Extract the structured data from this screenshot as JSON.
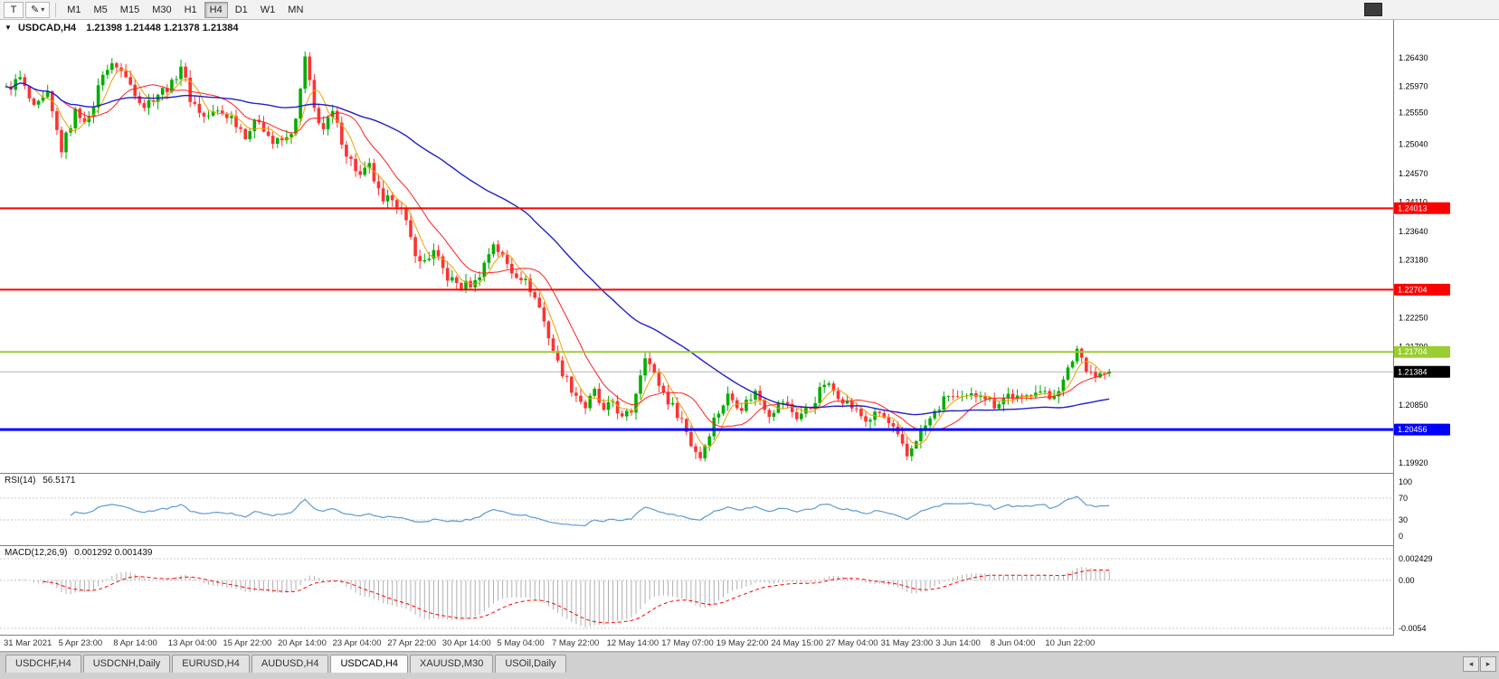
{
  "icons": {
    "cursor_tool": "T",
    "pencil": "✎",
    "caret_down": "▾",
    "chart_dropdown": "▼",
    "tab_scroll_left": "◂",
    "tab_scroll_right": "▸"
  },
  "toolbar": {
    "timeframes": [
      "M1",
      "M5",
      "M15",
      "M30",
      "H1",
      "H4",
      "D1",
      "W1",
      "MN"
    ],
    "active_timeframe": "H4"
  },
  "chart": {
    "symbol_period": "USDCAD,H4",
    "ohlc_text": "1.21398 1.21448 1.21378 1.21384",
    "open": "1.21398",
    "high": "1.21448",
    "low": "1.21378",
    "close": "1.21384"
  },
  "indicators": {
    "rsi": {
      "name": "RSI(14)",
      "value": "56.5171"
    },
    "macd": {
      "name": "MACD(12,26,9)",
      "value": "0.001292 0.001439"
    }
  },
  "chart_data": {
    "type": "candlestick",
    "symbol": "USDCAD",
    "timeframe": "H4",
    "bars": 241,
    "candle_colors": {
      "up": "#00ae00",
      "down": "#ff3232"
    },
    "y_ticks": [
      1.2643,
      1.2597,
      1.2555,
      1.2504,
      1.2457,
      1.2411,
      1.2364,
      1.2318,
      1.2225,
      1.2179,
      1.2085,
      1.1992
    ],
    "y_top_tick": 1.2643,
    "x_labels": [
      "31 Mar 2021",
      "5 Apr 23:00",
      "8 Apr 14:00",
      "13 Apr 04:00",
      "15 Apr 22:00",
      "20 Apr 14:00",
      "23 Apr 04:00",
      "27 Apr 22:00",
      "30 Apr 14:00",
      "5 May 04:00",
      "7 May 22:00",
      "12 May 14:00",
      "17 May 07:00",
      "19 May 22:00",
      "24 May 15:00",
      "27 May 04:00",
      "31 May 23:00",
      "3 Jun 14:00",
      "8 Jun 04:00",
      "10 Jun 22:00"
    ],
    "levels": [
      {
        "price": 1.24013,
        "label": "1.24013",
        "color": "#ff0000",
        "thickness": 2
      },
      {
        "price": 1.22704,
        "label": "1.22704",
        "color": "#ff0000",
        "thickness": 2
      },
      {
        "price": 1.21704,
        "label": "1.21704",
        "color": "#9acd32",
        "thickness": 2
      },
      {
        "price": 1.20456,
        "label": "1.20456",
        "color": "#0000ff",
        "thickness": 3
      }
    ],
    "bid_line": {
      "price": 1.21384,
      "label": "1.21384",
      "color": "#000000",
      "line_color": "#b4b4b4"
    },
    "moving_averages": [
      {
        "name": "fast",
        "type": "sma",
        "period": 5,
        "color": "#f0a000",
        "width": 1
      },
      {
        "name": "medium",
        "type": "sma",
        "period": 13,
        "color": "#ff2020",
        "width": 1
      },
      {
        "name": "slow",
        "type": "sma",
        "period": 50,
        "color": "#2020cc",
        "width": 1.4
      }
    ],
    "price_path": [
      [
        0,
        1.2592
      ],
      [
        3,
        1.261
      ],
      [
        6,
        1.256
      ],
      [
        9,
        1.2582
      ],
      [
        12,
        1.2496
      ],
      [
        15,
        1.2556
      ],
      [
        18,
        1.2542
      ],
      [
        21,
        1.2622
      ],
      [
        24,
        1.2632
      ],
      [
        27,
        1.26
      ],
      [
        30,
        1.2566
      ],
      [
        33,
        1.2586
      ],
      [
        36,
        1.26
      ],
      [
        38,
        1.2632
      ],
      [
        40,
        1.2578
      ],
      [
        43,
        1.2548
      ],
      [
        46,
        1.2556
      ],
      [
        49,
        1.2548
      ],
      [
        52,
        1.252
      ],
      [
        55,
        1.2544
      ],
      [
        58,
        1.2506
      ],
      [
        61,
        1.2512
      ],
      [
        63,
        1.254
      ],
      [
        65,
        1.2642
      ],
      [
        67,
        1.256
      ],
      [
        69,
        1.2528
      ],
      [
        71,
        1.2554
      ],
      [
        74,
        1.249
      ],
      [
        77,
        1.2452
      ],
      [
        79,
        1.2468
      ],
      [
        82,
        1.2406
      ],
      [
        84,
        1.2422
      ],
      [
        86,
        1.2398
      ],
      [
        88,
        1.2352
      ],
      [
        90,
        1.2312
      ],
      [
        93,
        1.233
      ],
      [
        96,
        1.229
      ],
      [
        99,
        1.2276
      ],
      [
        102,
        1.2282
      ],
      [
        104,
        1.2312
      ],
      [
        106,
        1.2346
      ],
      [
        108,
        1.2322
      ],
      [
        110,
        1.23
      ],
      [
        112,
        1.2292
      ],
      [
        114,
        1.2272
      ],
      [
        116,
        1.2242
      ],
      [
        118,
        1.2196
      ],
      [
        120,
        1.2152
      ],
      [
        123,
        1.2112
      ],
      [
        126,
        1.2082
      ],
      [
        128,
        1.2106
      ],
      [
        130,
        1.2072
      ],
      [
        132,
        1.2092
      ],
      [
        134,
        1.2062
      ],
      [
        136,
        1.2076
      ],
      [
        139,
        1.2168
      ],
      [
        141,
        1.2132
      ],
      [
        144,
        1.2092
      ],
      [
        147,
        1.2062
      ],
      [
        149,
        1.2022
      ],
      [
        151,
        1.2002
      ],
      [
        154,
        1.2062
      ],
      [
        157,
        1.21
      ],
      [
        160,
        1.2082
      ],
      [
        163,
        1.2106
      ],
      [
        166,
        1.2072
      ],
      [
        169,
        1.2092
      ],
      [
        172,
        1.2066
      ],
      [
        175,
        1.2082
      ],
      [
        178,
        1.212
      ],
      [
        181,
        1.2102
      ],
      [
        184,
        1.2082
      ],
      [
        187,
        1.206
      ],
      [
        190,
        1.2072
      ],
      [
        193,
        1.2046
      ],
      [
        196,
        1.2002
      ],
      [
        198,
        1.2032
      ],
      [
        202,
        1.2072
      ],
      [
        205,
        1.2102
      ],
      [
        208,
        1.2092
      ],
      [
        212,
        1.2106
      ],
      [
        215,
        1.2086
      ],
      [
        218,
        1.2102
      ],
      [
        221,
        1.2092
      ],
      [
        224,
        1.2112
      ],
      [
        227,
        1.2096
      ],
      [
        230,
        1.2122
      ],
      [
        233,
        1.2176
      ],
      [
        235,
        1.2146
      ],
      [
        237,
        1.2132
      ],
      [
        240,
        1.21384
      ]
    ],
    "rsi": {
      "label": "RSI(14)",
      "current": 56.5171,
      "period": 14,
      "axis_ticks": [
        100,
        70,
        30,
        0
      ],
      "guide_levels": [
        70,
        30
      ],
      "color": "#5b9bd5"
    },
    "macd": {
      "label": "MACD(12,26,9)",
      "macd_current": 0.001292,
      "signal_current": 0.001439,
      "axis_tick_labels": [
        "0.002429",
        "0.00",
        "-0.0054"
      ],
      "axis_tick_values": [
        0.002429,
        0,
        -0.0054
      ],
      "histogram_color": "#b0b0b0",
      "signal_color": "#ff0000"
    }
  },
  "tabs": {
    "items": [
      {
        "label": "USDCHF,H4",
        "active": false
      },
      {
        "label": "USDCNH,Daily",
        "active": false
      },
      {
        "label": "EURUSD,H4",
        "active": false
      },
      {
        "label": "AUDUSD,H4",
        "active": false
      },
      {
        "label": "USDCAD,H4",
        "active": true
      },
      {
        "label": "XAUUSD,M30",
        "active": false
      },
      {
        "label": "USOil,Daily",
        "active": false
      }
    ]
  }
}
